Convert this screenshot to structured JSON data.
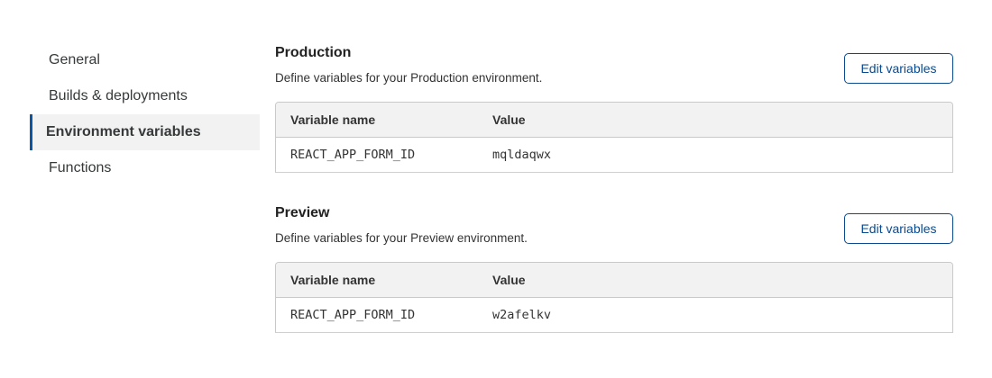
{
  "sidebar": {
    "items": [
      {
        "label": "General"
      },
      {
        "label": "Builds & deployments"
      },
      {
        "label": "Environment variables",
        "active": true
      },
      {
        "label": "Functions"
      }
    ]
  },
  "sections": [
    {
      "title": "Production",
      "description": "Define variables for your Production environment.",
      "button": "Edit variables",
      "columns": [
        "Variable name",
        "Value"
      ],
      "rows": [
        {
          "name": "REACT_APP_FORM_ID",
          "value": "mqldaqwx"
        }
      ]
    },
    {
      "title": "Preview",
      "description": "Define variables for your Preview environment.",
      "button": "Edit variables",
      "columns": [
        "Variable name",
        "Value"
      ],
      "rows": [
        {
          "name": "REACT_APP_FORM_ID",
          "value": "w2afelkv"
        }
      ]
    }
  ],
  "colors": {
    "accent": "#0a55a5",
    "header_bg": "#f2f2f2"
  }
}
